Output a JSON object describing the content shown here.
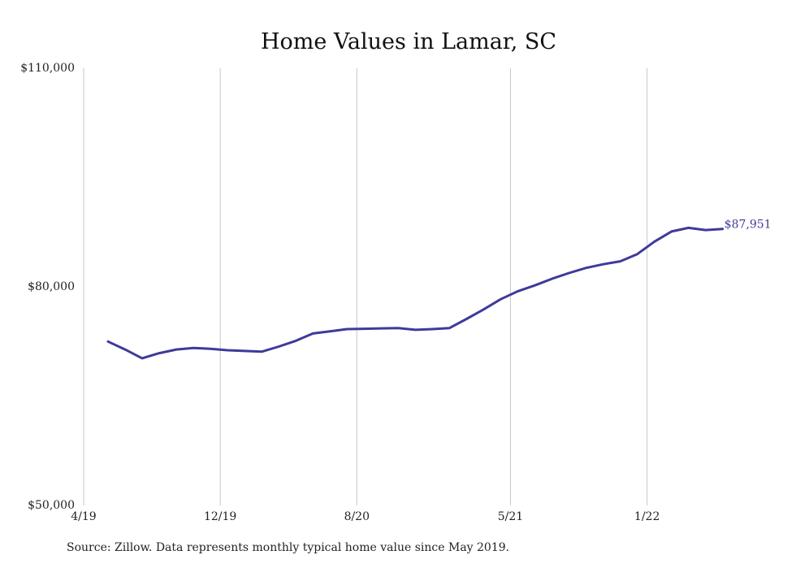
{
  "chart_data": {
    "type": "line",
    "title": "Home Values in Lamar, SC",
    "xlabel": "",
    "ylabel": "",
    "x_tick_labels": [
      "4/19",
      "12/19",
      "8/20",
      "5/21",
      "1/22"
    ],
    "y_tick_labels": [
      "$110,000",
      "$80,000",
      "$50,000"
    ],
    "ylim": [
      50000,
      110000
    ],
    "grid": "vertical",
    "line_color": "#3f3a9a",
    "end_label": "$87,951",
    "series": [
      {
        "x": [
          "2019-05",
          "2019-06",
          "2019-07",
          "2019-08",
          "2019-09",
          "2019-10",
          "2019-11",
          "2019-12",
          "2020-01",
          "2020-02",
          "2020-03",
          "2020-04",
          "2020-05",
          "2020-06",
          "2020-07",
          "2020-08",
          "2020-09",
          "2020-10",
          "2020-11",
          "2020-12",
          "2021-01",
          "2021-02",
          "2021-03",
          "2021-04",
          "2021-05",
          "2021-06",
          "2021-07",
          "2021-08",
          "2021-09",
          "2021-10",
          "2021-11",
          "2021-12",
          "2022-01",
          "2022-02",
          "2022-03",
          "2022-04",
          "2022-05"
        ],
        "values": [
          72500,
          71400,
          70200,
          70900,
          71400,
          71600,
          71500,
          71300,
          71200,
          71100,
          71800,
          72600,
          73600,
          73900,
          74200,
          74250,
          74300,
          74350,
          74100,
          74200,
          74350,
          75600,
          76900,
          78300,
          79400,
          80200,
          81100,
          81900,
          82600,
          83100,
          83500,
          84500,
          86200,
          87600,
          88100,
          87800,
          87951
        ]
      }
    ]
  },
  "footer": {
    "source": "Source: Zillow. Data represents monthly typical home value since May 2019."
  }
}
